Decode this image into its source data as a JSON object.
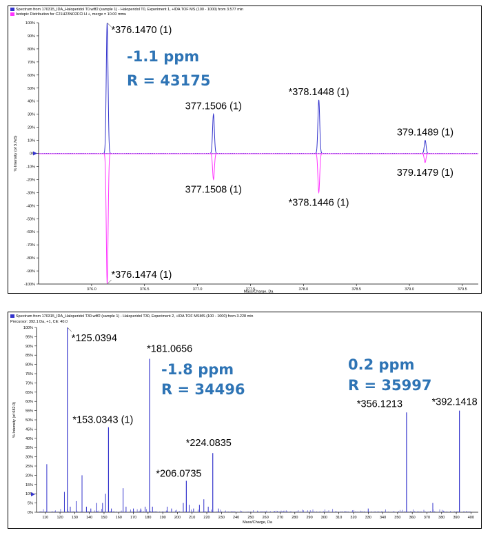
{
  "top_panel": {
    "header_line1": "Spectrum from 170315_IDA_Haloperidol T0.wiff2 (sample 1) - Haloperidol T0, Experiment 1, +IDA TOF MS (100 - 1000) from 3.577 min",
    "header_line2": "Isotopic Distribution for C21H23NO2FCl H +, merge = 10.00 mmu",
    "colors": {
      "measured": "#3333cc",
      "theoretical": "#ff33ff",
      "annotation": "#2e74b5"
    },
    "annotation_ppm": "-1.1 ppm",
    "annotation_R": "R = 43175",
    "chart_data": {
      "type": "line",
      "xlabel": "Mass/Charge, Da",
      "ylabel": "% Intensity (of 3.7e5)",
      "xlim": [
        375.5,
        379.65
      ],
      "ylim": [
        -100,
        100
      ],
      "x_ticks": [
        "376.0",
        "376.5",
        "377.0",
        "377.5",
        "378.0",
        "378.5",
        "379.0",
        "379.5"
      ],
      "y_ticks": [
        "100%",
        "90%",
        "80%",
        "70%",
        "60%",
        "50%",
        "40%",
        "30%",
        "20%",
        "10%",
        "0%",
        "-10%",
        "-20%",
        "-30%",
        "-40%",
        "-50%",
        "-60%",
        "-70%",
        "-80%",
        "-90%",
        "-100%"
      ],
      "series": [
        {
          "points": [
            {
              "mz": 376.147,
              "intensity": 100,
              "label": "*376.1470 (1)"
            },
            {
              "mz": 377.1506,
              "intensity": 30,
              "label": "377.1506 (1)"
            },
            {
              "mz": 378.1448,
              "intensity": 41,
              "label": "*378.1448 (1)"
            },
            {
              "mz": 379.1489,
              "intensity": 10,
              "label": "379.1489 (1)"
            }
          ]
        },
        {
          "points": [
            {
              "mz": 376.1474,
              "intensity": -100,
              "label": "*376.1474 (1)"
            },
            {
              "mz": 377.1508,
              "intensity": -20,
              "label": "377.1508 (1)"
            },
            {
              "mz": 378.1446,
              "intensity": -30,
              "label": "*378.1446 (1)"
            },
            {
              "mz": 379.1479,
              "intensity": -7,
              "label": "379.1479 (1)"
            }
          ]
        }
      ]
    }
  },
  "bottom_panel": {
    "header_line1": "Spectrum from 170315_IDA_Haloperidol T30.wiff2 (sample 1) - Haloperidol T30, Experiment 2, +IDA TOF MSMS (100 - 1000) from 3.228 min",
    "header_line2": "Precursor: 392.1 Da, +1, CE: 40.0",
    "colors": {
      "spectrum": "#3333cc",
      "annotation": "#2e74b5"
    },
    "annotation_left_ppm": "-1.8 ppm",
    "annotation_left_R": "R = 34496",
    "annotation_right_ppm": "0.2 ppm",
    "annotation_right_R": "R = 35997",
    "chart_data": {
      "type": "bar",
      "xlabel": "Mass/Charge, Da",
      "ylabel": "% Intensity (of 682.0)",
      "xlim": [
        104,
        405
      ],
      "ylim": [
        0,
        100
      ],
      "x_ticks": [
        "110",
        "120",
        "130",
        "140",
        "150",
        "160",
        "170",
        "180",
        "190",
        "200",
        "210",
        "220",
        "230",
        "240",
        "250",
        "260",
        "270",
        "280",
        "290",
        "300",
        "310",
        "320",
        "330",
        "340",
        "350",
        "360",
        "370",
        "380",
        "390",
        "400"
      ],
      "y_ticks": [
        "100%",
        "95%",
        "90%",
        "85%",
        "80%",
        "75%",
        "70%",
        "65%",
        "60%",
        "55%",
        "50%",
        "45%",
        "40%",
        "35%",
        "30%",
        "25%",
        "20%",
        "15%",
        "10%",
        "5%",
        "0%"
      ],
      "labeled_peaks": [
        {
          "mz": 125.0394,
          "intensity": 100,
          "label": "*125.0394"
        },
        {
          "mz": 181.0656,
          "intensity": 83,
          "label": "*181.0656"
        },
        {
          "mz": 153.0343,
          "intensity": 46,
          "label": "*153.0343 (1)"
        },
        {
          "mz": 224.0835,
          "intensity": 32,
          "label": "*224.0835"
        },
        {
          "mz": 206.0735,
          "intensity": 17,
          "label": "*206.0735"
        },
        {
          "mz": 356.1213,
          "intensity": 54,
          "label": "*356.1213"
        },
        {
          "mz": 392.1418,
          "intensity": 55,
          "label": "*392.1418"
        }
      ],
      "minor_peaks": [
        {
          "mz": 111.0,
          "intensity": 26
        },
        {
          "mz": 123.0,
          "intensity": 11
        },
        {
          "mz": 127.0,
          "intensity": 3
        },
        {
          "mz": 131.0,
          "intensity": 6
        },
        {
          "mz": 135.0,
          "intensity": 20
        },
        {
          "mz": 138.0,
          "intensity": 3
        },
        {
          "mz": 141.0,
          "intensity": 2
        },
        {
          "mz": 145.0,
          "intensity": 5
        },
        {
          "mz": 149.0,
          "intensity": 5
        },
        {
          "mz": 151.0,
          "intensity": 10
        },
        {
          "mz": 155.0,
          "intensity": 2
        },
        {
          "mz": 163.0,
          "intensity": 13
        },
        {
          "mz": 165.0,
          "intensity": 3
        },
        {
          "mz": 170.0,
          "intensity": 2
        },
        {
          "mz": 175.0,
          "intensity": 2
        },
        {
          "mz": 178.0,
          "intensity": 3
        },
        {
          "mz": 183.0,
          "intensity": 3
        },
        {
          "mz": 193.0,
          "intensity": 3
        },
        {
          "mz": 196.0,
          "intensity": 2
        },
        {
          "mz": 204.0,
          "intensity": 5
        },
        {
          "mz": 208.0,
          "intensity": 4
        },
        {
          "mz": 211.0,
          "intensity": 2
        },
        {
          "mz": 215.0,
          "intensity": 4
        },
        {
          "mz": 218.0,
          "intensity": 7
        },
        {
          "mz": 221.0,
          "intensity": 3
        },
        {
          "mz": 228.0,
          "intensity": 2
        },
        {
          "mz": 330.0,
          "intensity": 2
        },
        {
          "mz": 374.0,
          "intensity": 5
        }
      ]
    }
  }
}
